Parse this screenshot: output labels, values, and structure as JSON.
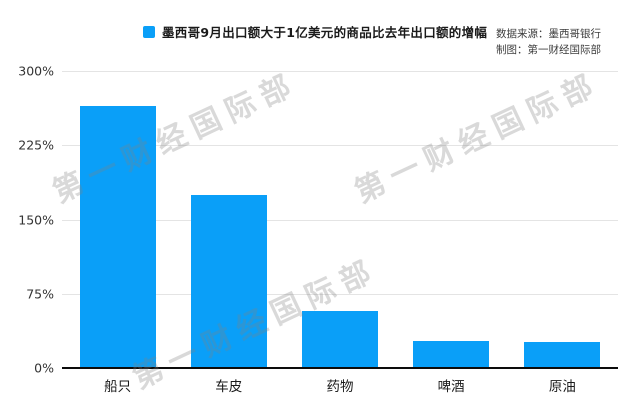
{
  "chart_data": {
    "type": "bar",
    "title": "墨西哥9月出口额大于1亿美元的商品比去年出口额的增幅",
    "categories": [
      "船只",
      "车皮",
      "药物",
      "啤酒",
      "原油"
    ],
    "values": [
      265,
      175,
      58,
      27,
      26
    ],
    "unit": "%",
    "xlabel": "",
    "ylabel": "",
    "ylim": [
      0,
      300
    ],
    "yticks": [
      300,
      225,
      150,
      75,
      0
    ],
    "ytick_labels": [
      "300%",
      "225%",
      "150%",
      "75%",
      "0%"
    ],
    "grid": "horizontal gridlines on",
    "legend_position": "top-center",
    "bar_color": "#0A9FF8"
  },
  "source": {
    "line1": "数据来源：墨西哥银行",
    "line2": "制图：第一财经国际部"
  },
  "watermark": {
    "text": "第一财经国际部"
  },
  "colors": {
    "bar": "#0A9FF8",
    "gridline": "#e4e4e4",
    "axis": "#0c0c0c",
    "watermark_gray": "#828282"
  }
}
